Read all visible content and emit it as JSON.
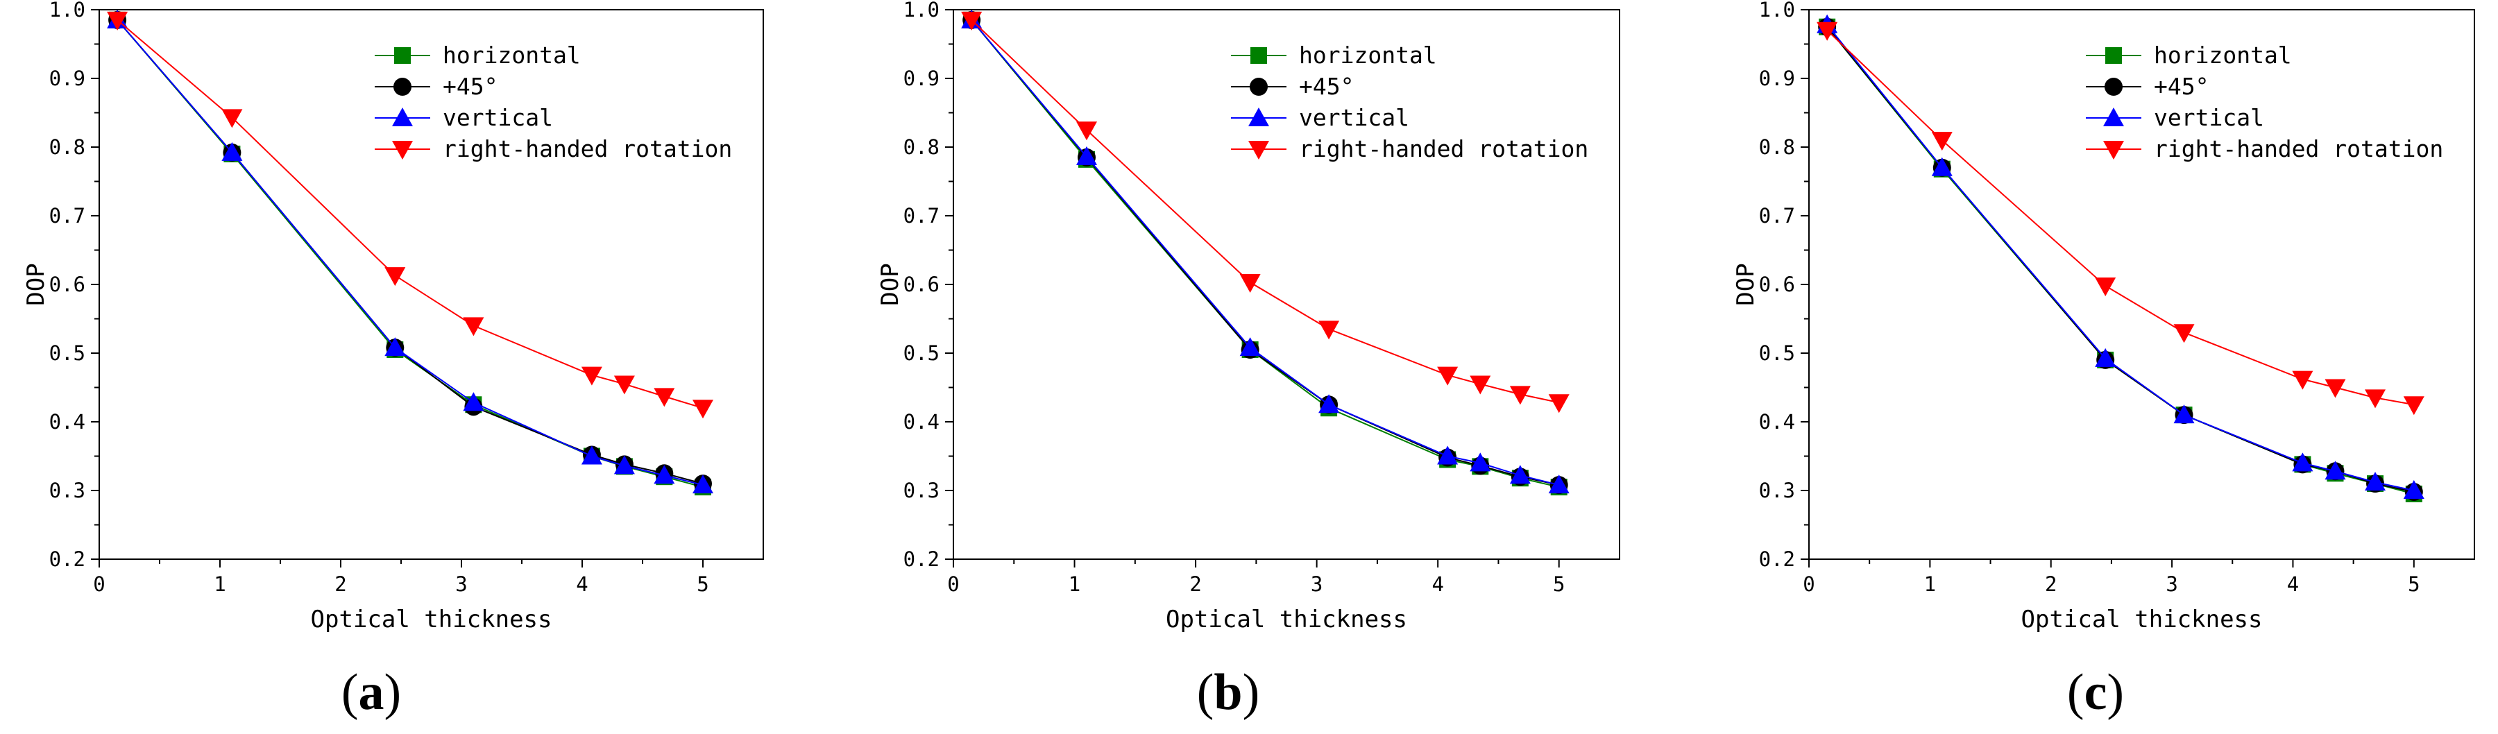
{
  "figure": {
    "panels": [
      "a",
      "b",
      "c"
    ]
  },
  "chart_data": [
    {
      "type": "line",
      "panel_label": "a",
      "xlabel": "Optical thickness",
      "ylabel": "DOP",
      "xlim": [
        0,
        5.5
      ],
      "ylim": [
        0.2,
        1.0
      ],
      "xticks": [
        "0",
        "1",
        "2",
        "3",
        "4",
        "5"
      ],
      "yticks": [
        "0.2",
        "0.3",
        "0.4",
        "0.5",
        "0.6",
        "0.7",
        "0.8",
        "0.9",
        "1.0"
      ],
      "legend_position": "top-right",
      "series": [
        {
          "name": "horizontal",
          "marker": "square",
          "color": "#008000",
          "x": [
            0.15,
            1.1,
            2.45,
            3.1,
            4.08,
            4.35,
            4.68,
            5.0
          ],
          "y": [
            0.985,
            0.79,
            0.505,
            0.425,
            0.35,
            0.335,
            0.32,
            0.305
          ]
        },
        {
          "name": "+45°",
          "marker": "circle",
          "color": "#000000",
          "x": [
            0.15,
            1.1,
            2.45,
            3.1,
            4.08,
            4.35,
            4.68,
            5.0
          ],
          "y": [
            0.985,
            0.792,
            0.508,
            0.422,
            0.352,
            0.338,
            0.325,
            0.31
          ]
        },
        {
          "name": "vertical",
          "marker": "triangle-up",
          "color": "#0000ff",
          "x": [
            0.15,
            1.1,
            2.45,
            3.1,
            4.08,
            4.35,
            4.68,
            5.0
          ],
          "y": [
            0.985,
            0.792,
            0.508,
            0.428,
            0.35,
            0.336,
            0.322,
            0.308
          ]
        },
        {
          "name": "right-handed rotation",
          "marker": "triangle-down",
          "color": "#ff0000",
          "x": [
            0.15,
            1.1,
            2.45,
            3.1,
            4.08,
            4.35,
            4.68,
            5.0
          ],
          "y": [
            0.985,
            0.843,
            0.613,
            0.54,
            0.468,
            0.455,
            0.437,
            0.42
          ]
        }
      ]
    },
    {
      "type": "line",
      "panel_label": "b",
      "xlabel": "Optical thickness",
      "ylabel": "DOP",
      "xlim": [
        0,
        5.5
      ],
      "ylim": [
        0.2,
        1.0
      ],
      "xticks": [
        "0",
        "1",
        "2",
        "3",
        "4",
        "5"
      ],
      "yticks": [
        "0.2",
        "0.3",
        "0.4",
        "0.5",
        "0.6",
        "0.7",
        "0.8",
        "0.9",
        "1.0"
      ],
      "legend_position": "top-right",
      "series": [
        {
          "name": "horizontal",
          "marker": "square",
          "color": "#008000",
          "x": [
            0.15,
            1.1,
            2.45,
            3.1,
            4.08,
            4.35,
            4.68,
            5.0
          ],
          "y": [
            0.985,
            0.782,
            0.505,
            0.42,
            0.345,
            0.335,
            0.318,
            0.305
          ]
        },
        {
          "name": "+45°",
          "marker": "circle",
          "color": "#000000",
          "x": [
            0.15,
            1.1,
            2.45,
            3.1,
            4.08,
            4.35,
            4.68,
            5.0
          ],
          "y": [
            0.985,
            0.785,
            0.505,
            0.425,
            0.348,
            0.336,
            0.32,
            0.308
          ]
        },
        {
          "name": "vertical",
          "marker": "triangle-up",
          "color": "#0000ff",
          "x": [
            0.15,
            1.1,
            2.45,
            3.1,
            4.08,
            4.35,
            4.68,
            5.0
          ],
          "y": [
            0.985,
            0.786,
            0.508,
            0.425,
            0.35,
            0.34,
            0.322,
            0.308
          ]
        },
        {
          "name": "right-handed rotation",
          "marker": "triangle-down",
          "color": "#ff0000",
          "x": [
            0.15,
            1.1,
            2.45,
            3.1,
            4.08,
            4.35,
            4.68,
            5.0
          ],
          "y": [
            0.985,
            0.825,
            0.603,
            0.535,
            0.468,
            0.455,
            0.44,
            0.428
          ]
        }
      ]
    },
    {
      "type": "line",
      "panel_label": "c",
      "xlabel": "Optical thickness",
      "ylabel": "DOP",
      "xlim": [
        0,
        5.5
      ],
      "ylim": [
        0.2,
        1.0
      ],
      "xticks": [
        "0",
        "1",
        "2",
        "3",
        "4",
        "5"
      ],
      "yticks": [
        "0.2",
        "0.3",
        "0.4",
        "0.5",
        "0.6",
        "0.7",
        "0.8",
        "0.9",
        "1.0"
      ],
      "legend_position": "top-right",
      "series": [
        {
          "name": "horizontal",
          "marker": "square",
          "color": "#008000",
          "x": [
            0.15,
            1.1,
            2.45,
            3.1,
            4.08,
            4.35,
            4.68,
            5.0
          ],
          "y": [
            0.975,
            0.768,
            0.49,
            0.41,
            0.338,
            0.325,
            0.31,
            0.295
          ]
        },
        {
          "name": "+45°",
          "marker": "circle",
          "color": "#000000",
          "x": [
            0.15,
            1.1,
            2.45,
            3.1,
            4.08,
            4.35,
            4.68,
            5.0
          ],
          "y": [
            0.975,
            0.77,
            0.49,
            0.41,
            0.338,
            0.328,
            0.31,
            0.298
          ]
        },
        {
          "name": "vertical",
          "marker": "triangle-up",
          "color": "#0000ff",
          "x": [
            0.15,
            1.1,
            2.45,
            3.1,
            4.08,
            4.35,
            4.68,
            5.0
          ],
          "y": [
            0.978,
            0.77,
            0.492,
            0.41,
            0.34,
            0.328,
            0.312,
            0.3
          ]
        },
        {
          "name": "right-handed rotation",
          "marker": "triangle-down",
          "color": "#ff0000",
          "x": [
            0.15,
            1.1,
            2.45,
            3.1,
            4.08,
            4.35,
            4.68,
            5.0
          ],
          "y": [
            0.97,
            0.81,
            0.598,
            0.53,
            0.462,
            0.45,
            0.435,
            0.425
          ]
        }
      ]
    }
  ]
}
